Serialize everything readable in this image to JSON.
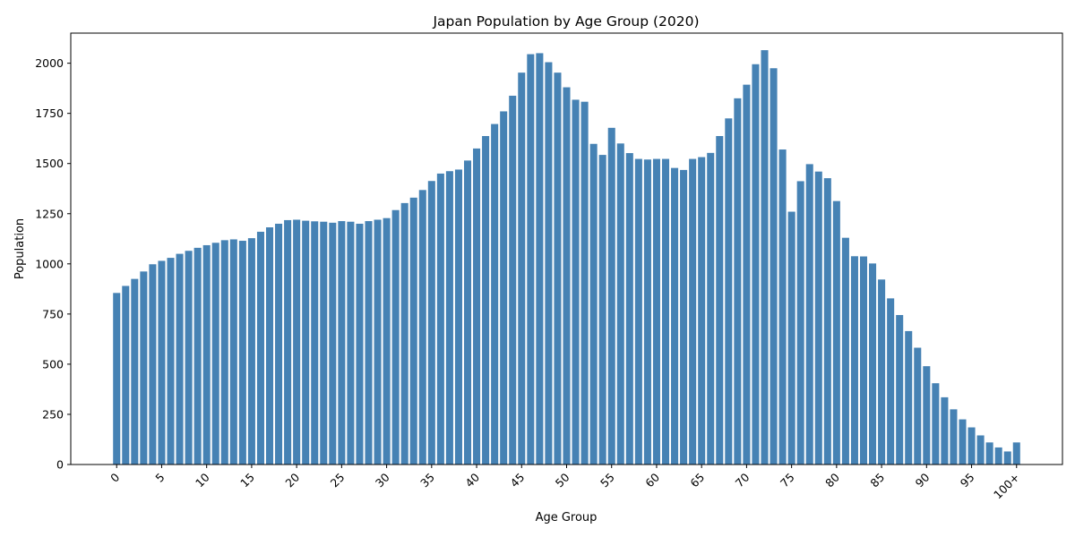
{
  "chart_data": {
    "type": "bar",
    "title": "Japan Population by Age Group (2020)",
    "xlabel": "Age Group",
    "ylabel": "Population",
    "ylim": [
      0,
      2150
    ],
    "yticks": [
      0,
      250,
      500,
      750,
      1000,
      1250,
      1500,
      1750,
      2000
    ],
    "ytick_labels": [
      "0",
      "250",
      "500",
      "750",
      "1000",
      "1250",
      "1500",
      "1750",
      "2000"
    ],
    "xticks": [
      {
        "index": 0,
        "label": "0"
      },
      {
        "index": 5,
        "label": "5"
      },
      {
        "index": 10,
        "label": "10"
      },
      {
        "index": 15,
        "label": "15"
      },
      {
        "index": 20,
        "label": "20"
      },
      {
        "index": 25,
        "label": "25"
      },
      {
        "index": 30,
        "label": "30"
      },
      {
        "index": 35,
        "label": "35"
      },
      {
        "index": 40,
        "label": "40"
      },
      {
        "index": 45,
        "label": "45"
      },
      {
        "index": 50,
        "label": "50"
      },
      {
        "index": 55,
        "label": "55"
      },
      {
        "index": 60,
        "label": "60"
      },
      {
        "index": 65,
        "label": "65"
      },
      {
        "index": 70,
        "label": "70"
      },
      {
        "index": 75,
        "label": "75"
      },
      {
        "index": 80,
        "label": "80"
      },
      {
        "index": 85,
        "label": "85"
      },
      {
        "index": 90,
        "label": "90"
      },
      {
        "index": 95,
        "label": "95"
      },
      {
        "index": 100,
        "label": "100+"
      }
    ],
    "bar_color": "#4682b4",
    "grid": false,
    "values": [
      855,
      890,
      925,
      962,
      998,
      1015,
      1030,
      1050,
      1065,
      1080,
      1093,
      1105,
      1118,
      1122,
      1115,
      1128,
      1160,
      1182,
      1200,
      1218,
      1220,
      1215,
      1212,
      1210,
      1205,
      1213,
      1210,
      1200,
      1213,
      1220,
      1228,
      1268,
      1303,
      1330,
      1368,
      1413,
      1450,
      1462,
      1470,
      1515,
      1575,
      1637,
      1697,
      1760,
      1838,
      1953,
      2045,
      2050,
      2005,
      1953,
      1880,
      1818,
      1808,
      1598,
      1543,
      1678,
      1600,
      1552,
      1523,
      1520,
      1523,
      1523,
      1478,
      1468,
      1523,
      1532,
      1553,
      1637,
      1725,
      1825,
      1893,
      1995,
      2065,
      1975,
      1570,
      1260,
      1412,
      1497,
      1460,
      1427,
      1313,
      1130,
      1038,
      1037,
      1002,
      922,
      828,
      745,
      665,
      582,
      490,
      405,
      335,
      275,
      225,
      185,
      145,
      110,
      85,
      65,
      110
    ]
  }
}
